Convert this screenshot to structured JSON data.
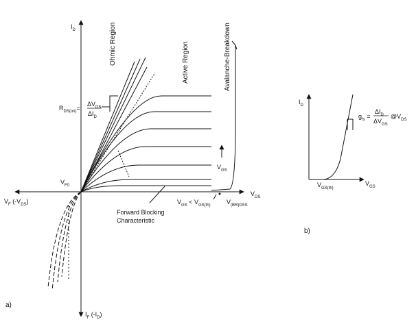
{
  "figure_a": {
    "panel_label": "a)",
    "axes": {
      "y_pos": {
        "main": "I",
        "sub": "D"
      },
      "y_neg": {
        "main": "I",
        "sub": "F",
        "suffix": " (-I",
        "suffix_sub": "D",
        "suffix_end": ")"
      },
      "x_pos": {
        "main": "V",
        "sub": "DS"
      },
      "x_neg": {
        "main": "V",
        "sub": "F",
        "suffix": " (-V",
        "suffix_sub": "DS",
        "suffix_end": ")"
      }
    },
    "regions": {
      "ohmic": "Ohmic Region",
      "active": "Active Region",
      "avalanche": "Avalanche-Breakdown"
    },
    "rds_label": {
      "main": "R",
      "sub": "DS(on)",
      "eq": "=",
      "num": "ΔV",
      "num_sub": "DS",
      "den": "ΔI",
      "den_sub": "D"
    },
    "vfo_label": {
      "main": "V",
      "sub": "F0"
    },
    "vgs_arrow_label": {
      "main": "V",
      "sub": "GS"
    },
    "forward_blocking": {
      "line1": "Forward Blocking",
      "line2": "Characteristic"
    },
    "vgs_condition": {
      "main1": "V",
      "sub1": "GS",
      "op": " < V",
      "sub2": "GS(th)"
    },
    "breakdown_label": {
      "main": "V",
      "sub": "(BR)DSS"
    }
  },
  "figure_b": {
    "panel_label": "b)",
    "axes": {
      "y": {
        "main": "I",
        "sub": "D"
      },
      "x": {
        "main": "V",
        "sub": "GS"
      }
    },
    "threshold_label": {
      "main": "V",
      "sub": "GS(th)"
    },
    "gfs_label": {
      "main": "g",
      "sub": "fs",
      "eq": " = ",
      "num": "ΔI",
      "num_sub": "D",
      "den": "ΔV",
      "den_sub": "GS",
      "at": "@V",
      "at_sub": "DS"
    }
  },
  "colors": {
    "ink": "#111111",
    "background": "#ffffff"
  }
}
